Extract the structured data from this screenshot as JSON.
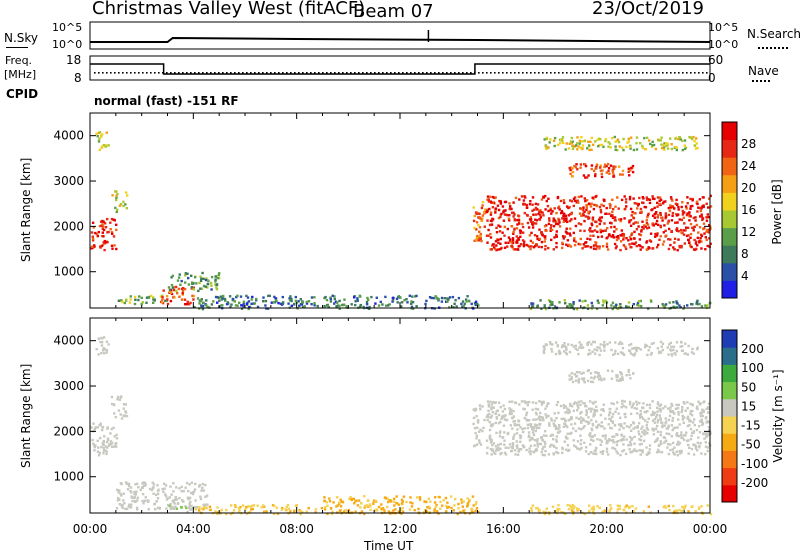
{
  "header": {
    "station": "Christmas Valley West (fitACF)",
    "beam": "Beam 07",
    "date": "23/Oct/2019"
  },
  "top_panels": {
    "nsky_label": "N.Sky",
    "nsky_ticks": [
      "10^5",
      "10^0"
    ],
    "nsearch_label": "N.Search",
    "nsearch_ticks": [
      "10^5",
      "10^0"
    ],
    "freq_label_1": "Freq.",
    "freq_label_2": "[MHz]",
    "freq_ticks": [
      "18",
      "8"
    ],
    "nave_label": "Nave",
    "nave_ticks": [
      "60",
      "0"
    ],
    "cpid_label": "CPID",
    "cpid_text": "normal (fast) -151 RF"
  },
  "chart_data": [
    {
      "type": "heatmap",
      "panel": "power",
      "ylabel": "Slant Range [km]",
      "xlabel": "",
      "y_ticks": [
        "4000",
        "3000",
        "2000",
        "1000"
      ],
      "ylim_km": [
        200,
        4500
      ],
      "xlim_hours": [
        0,
        24
      ],
      "colorbar_label": "Power [dB]",
      "colorbar_ticks": [
        "28",
        "24",
        "20",
        "16",
        "12",
        "8",
        "4"
      ],
      "colorbar_range": [
        0,
        30
      ],
      "colors": [
        "#1f1fe6",
        "#2a4fa8",
        "#3d7a5c",
        "#5a9e4a",
        "#a8c832",
        "#f0d21e",
        "#f5a014",
        "#f06414",
        "#e62814",
        "#e60000"
      ],
      "echo_regions": [
        {
          "t": [
            0.0,
            1.0
          ],
          "r": [
            1500,
            2200
          ],
          "value": 26
        },
        {
          "t": [
            0.2,
            0.7
          ],
          "r": [
            3700,
            4100
          ],
          "value": 15
        },
        {
          "t": [
            0.8,
            1.4
          ],
          "r": [
            2300,
            2800
          ],
          "value": 14
        },
        {
          "t": [
            1.0,
            3.0
          ],
          "r": [
            300,
            500
          ],
          "value": 12
        },
        {
          "t": [
            2.7,
            4.0
          ],
          "r": [
            300,
            700
          ],
          "value": 24
        },
        {
          "t": [
            3.0,
            5.0
          ],
          "r": [
            600,
            1000
          ],
          "value": 10
        },
        {
          "t": [
            4.0,
            15.0
          ],
          "r": [
            200,
            500
          ],
          "value": 7
        },
        {
          "t": [
            14.8,
            15.3
          ],
          "r": [
            1700,
            2600
          ],
          "value": 22
        },
        {
          "t": [
            15.3,
            24.0
          ],
          "r": [
            1500,
            2700
          ],
          "value": 27
        },
        {
          "t": [
            18.5,
            21.0
          ],
          "r": [
            3100,
            3400
          ],
          "value": 25
        },
        {
          "t": [
            17.5,
            23.5
          ],
          "r": [
            3700,
            4000
          ],
          "value": 15
        },
        {
          "t": [
            17.0,
            24.0
          ],
          "r": [
            200,
            400
          ],
          "value": 9
        }
      ]
    },
    {
      "type": "heatmap",
      "panel": "velocity",
      "ylabel": "Slant Range [km]",
      "xlabel": "Time UT",
      "x_ticks": [
        "00:00",
        "04:00",
        "08:00",
        "12:00",
        "16:00",
        "20:00",
        "00:00"
      ],
      "y_ticks": [
        "4000",
        "3000",
        "2000",
        "1000"
      ],
      "ylim_km": [
        200,
        4500
      ],
      "xlim_hours": [
        0,
        24
      ],
      "colorbar_label": "Velocity [m s⁻¹]",
      "colorbar_ticks": [
        "200",
        "100",
        "50",
        "15",
        "-15",
        "-50",
        "-100",
        "-200"
      ],
      "colorbar_range": [
        -250,
        250
      ],
      "colors": [
        "#e60000",
        "#f03c14",
        "#f57814",
        "#f5aa14",
        "#f5d250",
        "#c8c8c0",
        "#7ac84a",
        "#3caa3c",
        "#2a6e8c",
        "#1e3cb4"
      ],
      "ground_scatter_color": "#c8c8c0",
      "echo_regions": [
        {
          "t": [
            0.0,
            1.0
          ],
          "r": [
            1500,
            2200
          ],
          "value": 0
        },
        {
          "t": [
            0.8,
            1.4
          ],
          "r": [
            2300,
            2800
          ],
          "value": 0
        },
        {
          "t": [
            0.2,
            0.7
          ],
          "r": [
            3700,
            4100
          ],
          "value": 0
        },
        {
          "t": [
            1.0,
            4.5
          ],
          "r": [
            300,
            900
          ],
          "value": 0
        },
        {
          "t": [
            3.0,
            4.0
          ],
          "r": [
            250,
            450
          ],
          "value": 60
        },
        {
          "t": [
            4.0,
            9.0
          ],
          "r": [
            200,
            400
          ],
          "value": -40
        },
        {
          "t": [
            9.0,
            15.0
          ],
          "r": [
            200,
            600
          ],
          "value": -60
        },
        {
          "t": [
            14.8,
            15.3
          ],
          "r": [
            1700,
            2600
          ],
          "value": 0
        },
        {
          "t": [
            15.3,
            24.0
          ],
          "r": [
            1500,
            2700
          ],
          "value": 0
        },
        {
          "t": [
            18.5,
            21.0
          ],
          "r": [
            3100,
            3400
          ],
          "value": 0
        },
        {
          "t": [
            17.5,
            23.5
          ],
          "r": [
            3700,
            4000
          ],
          "value": 0
        },
        {
          "t": [
            17.0,
            24.0
          ],
          "r": [
            200,
            400
          ],
          "value": -30
        }
      ]
    }
  ]
}
